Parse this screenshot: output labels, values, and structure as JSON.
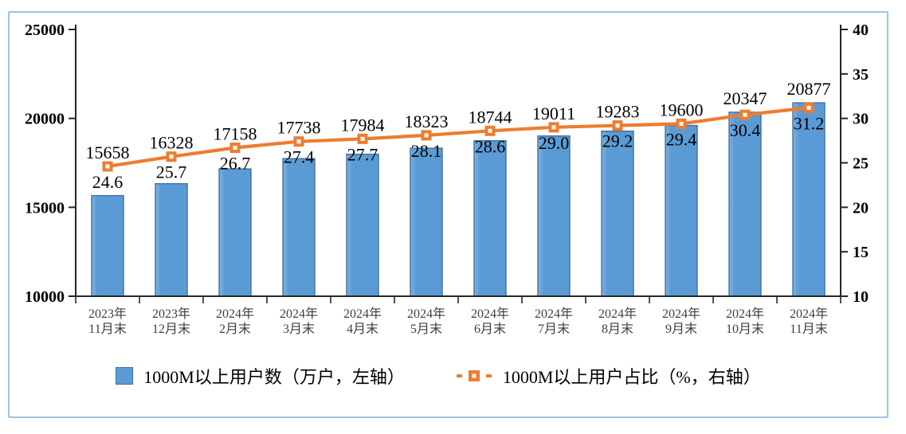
{
  "chart_data": {
    "type": "bar-line-combo",
    "categories": [
      [
        "2023年",
        "11月末"
      ],
      [
        "2023年",
        "12月末"
      ],
      [
        "2024年",
        "2月末"
      ],
      [
        "2024年",
        "3月末"
      ],
      [
        "2024年",
        "4月末"
      ],
      [
        "2024年",
        "5月末"
      ],
      [
        "2024年",
        "6月末"
      ],
      [
        "2024年",
        "7月末"
      ],
      [
        "2024年",
        "8月末"
      ],
      [
        "2024年",
        "9月末"
      ],
      [
        "2024年",
        "10月末"
      ],
      [
        "2024年",
        "11月末"
      ]
    ],
    "series": [
      {
        "name": "1000M以上用户数（万户，左轴）",
        "type": "bar",
        "axis": "left",
        "values": [
          15658,
          16328,
          17158,
          17738,
          17984,
          18323,
          18744,
          19011,
          19283,
          19600,
          20347,
          20877
        ]
      },
      {
        "name": "1000M以上用户占比（%，右轴）",
        "type": "line",
        "axis": "right",
        "values": [
          24.6,
          25.7,
          26.7,
          27.4,
          27.7,
          28.1,
          28.6,
          29.0,
          29.2,
          29.4,
          30.4,
          31.2
        ],
        "value_labels": [
          "24.6",
          "25.7",
          "26.7",
          "27.4",
          "27.7",
          "28.1",
          "28.6",
          "29.0",
          "29.2",
          "29.4",
          "30.4",
          "31.2"
        ]
      }
    ],
    "axes": {
      "left": {
        "min": 10000,
        "max": 25000,
        "ticks": [
          25000,
          20000,
          15000,
          10000
        ]
      },
      "right": {
        "min": 10,
        "max": 40,
        "ticks": [
          40,
          35,
          30,
          25,
          20,
          15,
          10
        ]
      }
    },
    "grid": "off",
    "legend_position": "bottom",
    "colors": {
      "bar_fill": "#5B9BD5",
      "bar_fill_light": "#7FB2E2",
      "bar_stroke": "#41719C",
      "line": "#ED7D31",
      "marker_fill": "#ED7D31",
      "marker_center": "#FFFFFF",
      "axis": "#262626",
      "category_label": "#3F3F3F",
      "frame_border": "#9CC2E5"
    }
  }
}
